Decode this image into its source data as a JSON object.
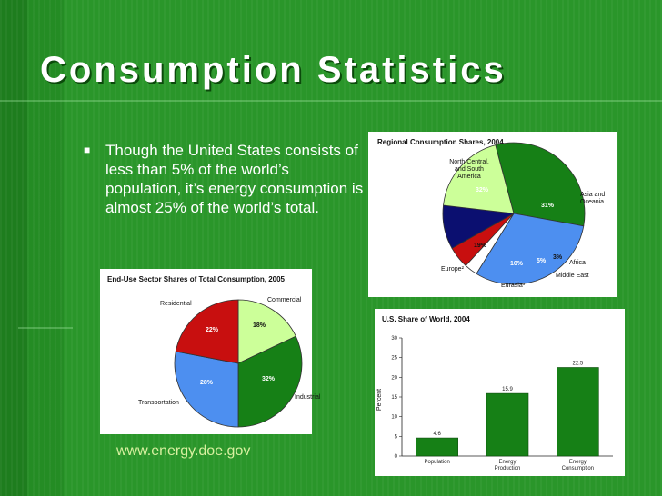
{
  "slide": {
    "title": "Consumption Statistics",
    "bullet": "Though the United States consists of less than 5% of the world’s population, it’s energy consumption is almost 25% of the world’s total.",
    "link": "www.energy.doe.gov"
  },
  "colors": {
    "dark_green": "#168016",
    "blue": "#4d8ff0",
    "light_green": "#ccff99",
    "navy": "#0b0f70",
    "red": "#c80f0f",
    "white": "#ffffff"
  },
  "chart_data": [
    {
      "type": "pie",
      "title": "Regional Consumption Shares, 2004",
      "slices": [
        {
          "label": "North Central, and South America",
          "value": 32,
          "value_label": "32%"
        },
        {
          "label": "Asia and Oceania",
          "value": 31,
          "value_label": "31%"
        },
        {
          "label": "Africa",
          "value": 3,
          "value_label": "3%"
        },
        {
          "label": "Middle East",
          "value": 5,
          "value_label": "5%"
        },
        {
          "label": "Eurasia³",
          "value": 10,
          "value_label": "10%"
        },
        {
          "label": "Europe²",
          "value": 19,
          "value_label": "19%"
        }
      ]
    },
    {
      "type": "pie",
      "title": "End-Use Sector Shares of Total Consumption, 2005",
      "slices": [
        {
          "label": "Commercial",
          "value": 18,
          "value_label": "18%"
        },
        {
          "label": "Industrial",
          "value": 32,
          "value_label": "32%"
        },
        {
          "label": "Transportation",
          "value": 28,
          "value_label": "28%"
        },
        {
          "label": "Residential",
          "value": 22,
          "value_label": "22%"
        }
      ]
    },
    {
      "type": "bar",
      "title": "U.S. Share of World, 2004",
      "ylabel": "Percent",
      "categories": [
        "Population",
        "Energy Production",
        "Energy Consumption"
      ],
      "values": [
        4.6,
        15.9,
        22.5
      ],
      "value_labels": [
        "4.6",
        "15.9",
        "22.5"
      ],
      "ylim": [
        0,
        30
      ],
      "yticks": [
        "0",
        "5",
        "10",
        "15",
        "20",
        "25",
        "30"
      ]
    }
  ]
}
